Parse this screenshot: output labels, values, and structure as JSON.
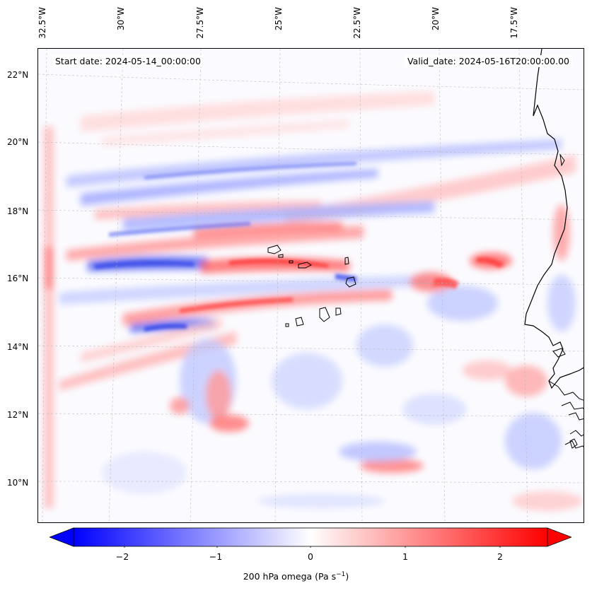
{
  "map": {
    "start_date": "Start date: 2024-05-14_00:00:00",
    "valid_date": "Valid_date: 2024-05-16T20:00:00.00",
    "longitude_labels": [
      "32.5°W",
      "30°W",
      "27.5°W",
      "25°W",
      "22.5°W",
      "20°W",
      "17.5°W"
    ],
    "latitude_labels": [
      "22°N",
      "20°N",
      "18°N",
      "16°N",
      "14°N",
      "12°N",
      "10°N"
    ],
    "colormap": "bwr",
    "color_low": "#0000ff",
    "color_mid": "#ffffff",
    "color_high": "#ff0000",
    "coastline_color": "#000000"
  },
  "colorbar": {
    "ticks": [
      "−2",
      "−1",
      "0",
      "1",
      "2"
    ],
    "range": [
      -2.6,
      2.6
    ],
    "extend": "both",
    "label": "200 hPa omega (Pa s",
    "label_exp": "−1",
    "label_close": ")"
  }
}
